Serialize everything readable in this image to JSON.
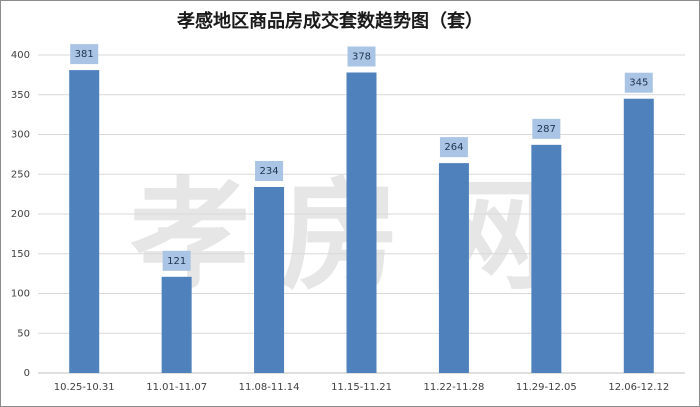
{
  "chart_data": {
    "type": "bar",
    "title": "孝感地区商品房成交套数趋势图（套）",
    "watermark": "孝房网",
    "categories": [
      "10.25-10.31",
      "11.01-11.07",
      "11.08-11.14",
      "11.15-11.21",
      "11.22-11.28",
      "11.29-12.05",
      "12.06-12.12"
    ],
    "values": [
      381,
      121,
      234,
      378,
      264,
      287,
      345
    ],
    "color": "#4f81bd",
    "label_color": "#a9c4e4",
    "ylim": [
      0,
      400
    ],
    "yticks": [
      0,
      50,
      100,
      150,
      200,
      250,
      300,
      350,
      400
    ],
    "grid": true
  }
}
